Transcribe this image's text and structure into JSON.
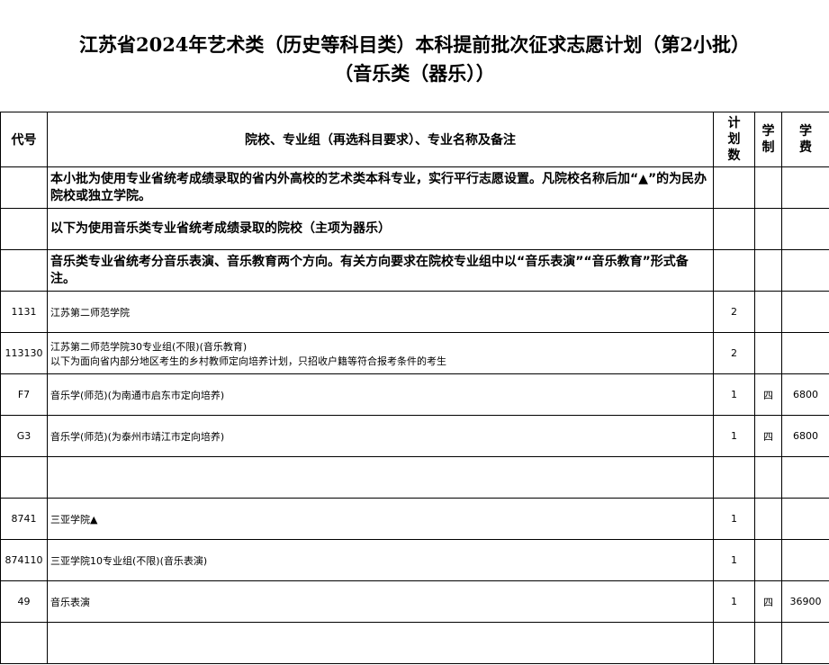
{
  "title": {
    "line1": "江苏省2024年艺术类（历史等科目类）本科提前批次征求志愿计划（第2小批）",
    "line2": "（音乐类（器乐））"
  },
  "table": {
    "header": [
      "代号",
      "院校、专业组（再选科目要求）、专业名称及备注",
      "计划数",
      "学制",
      "学费"
    ],
    "rows": [
      [
        null,
        "本小批为使用专业省统考成绩录取的省内外高校的艺术类本科专业，实行平行志愿设置。凡院校名称后加“▲”的为民办院校或独立学院。",
        null,
        null,
        null
      ],
      [
        null,
        "以下为使用音乐类专业省统考成绩录取的院校（主项为器乐）",
        null,
        null,
        null
      ],
      [
        null,
        "音乐类专业省统考分音乐表演、音乐教育两个方向。有关方向要求在院校专业组中以“音乐表演”“音乐教育”形式备注。",
        null,
        null,
        null
      ],
      [
        "1131",
        "江苏第二师范学院",
        2,
        null,
        null
      ],
      [
        "113130",
        [
          "江苏第二师范学院30专业组(不限)(音乐教育)",
          "以下为面向省内部分地区考生的乡村教师定向培养计划，只招收户籍等符合报考条件的考生"
        ],
        2,
        null,
        null
      ],
      [
        "F7",
        "音乐学(师范)(为南通市启东市定向培养)",
        1,
        "四",
        6800
      ],
      [
        "G3",
        "音乐学(师范)(为泰州市靖江市定向培养)",
        1,
        "四",
        6800
      ],
      [
        null,
        null,
        null,
        null,
        null
      ],
      [
        "8741",
        "三亚学院▲",
        1,
        null,
        null
      ],
      [
        "874110",
        "三亚学院10专业组(不限)(音乐表演)",
        1,
        null,
        null
      ],
      [
        "49",
        "音乐表演",
        1,
        "四",
        36900
      ],
      [
        null,
        null,
        null,
        null,
        null
      ]
    ]
  }
}
